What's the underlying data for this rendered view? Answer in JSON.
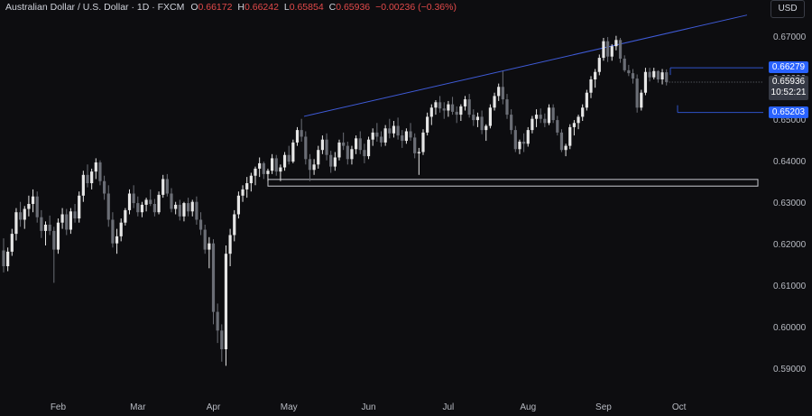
{
  "header": {
    "symbol_title": "Australian Dollar / U.S. Dollar · 1D · FXCM",
    "o_label": "O",
    "o_value": "0.66172",
    "h_label": "H",
    "h_value": "0.66242",
    "l_label": "L",
    "l_value": "0.65854",
    "c_label": "C",
    "c_value": "0.65936",
    "change": "−0.00236 (−0.36%)"
  },
  "currency_button": "USD",
  "price_badges": {
    "upper_level": "0.66279",
    "last_price": "0.65936",
    "countdown": "10:52:21",
    "lower_level": "0.65203"
  },
  "colors": {
    "background": "#0d0d10",
    "candle_up": "#e6e6e6",
    "candle_down": "#6b6e76",
    "trendline": "#3f5bd8",
    "level_box": "#2f52c8",
    "badge_blue": "#2962ff"
  },
  "chart_data": {
    "type": "candlestick",
    "symbol": "AUDUSD",
    "timeframe": "1D",
    "y_ticks": [
      "0.67000",
      "0.66000",
      "0.65000",
      "0.64000",
      "0.63000",
      "0.62000",
      "0.61000",
      "0.60000",
      "0.59000"
    ],
    "x_ticks": [
      "Feb",
      "Mar",
      "Apr",
      "May",
      "Jun",
      "Jul",
      "Aug",
      "Sep",
      "Oct"
    ],
    "ylim": [
      0.5865,
      0.6745
    ],
    "annotations": {
      "rising_trendline": {
        "from": {
          "date": "May 2",
          "price": 0.6511
        },
        "to": {
          "date": "Oct 24",
          "price": 0.6755
        }
      },
      "support_zone": {
        "price_low": 0.6343,
        "price_high": 0.6359
      },
      "range_box": {
        "upper": 0.66279,
        "lower": 0.65203
      }
    },
    "series": [
      {
        "values": [
          [
            0.6188,
            0.6217,
            0.6135,
            0.615
          ],
          [
            0.615,
            0.6195,
            0.6138,
            0.6185
          ],
          [
            0.6185,
            0.624,
            0.6175,
            0.6228
          ],
          [
            0.6228,
            0.629,
            0.6212,
            0.628
          ],
          [
            0.628,
            0.6305,
            0.6245,
            0.6262
          ],
          [
            0.6262,
            0.6295,
            0.624,
            0.6288
          ],
          [
            0.6288,
            0.632,
            0.627,
            0.63
          ],
          [
            0.63,
            0.6335,
            0.628,
            0.6318
          ],
          [
            0.6318,
            0.633,
            0.6255,
            0.6268
          ],
          [
            0.6268,
            0.6285,
            0.6218,
            0.6235
          ],
          [
            0.6235,
            0.6258,
            0.62,
            0.625
          ],
          [
            0.625,
            0.6272,
            0.6225,
            0.6235
          ],
          [
            0.6235,
            0.6245,
            0.611,
            0.619
          ],
          [
            0.619,
            0.6265,
            0.618,
            0.6255
          ],
          [
            0.6255,
            0.629,
            0.624,
            0.6275
          ],
          [
            0.6275,
            0.6288,
            0.6225,
            0.6238
          ],
          [
            0.6238,
            0.629,
            0.6228,
            0.6282
          ],
          [
            0.6282,
            0.63,
            0.6255,
            0.6265
          ],
          [
            0.6265,
            0.633,
            0.6255,
            0.632
          ],
          [
            0.632,
            0.638,
            0.6305,
            0.637
          ],
          [
            0.637,
            0.6395,
            0.634,
            0.635
          ],
          [
            0.635,
            0.6385,
            0.6335,
            0.6378
          ],
          [
            0.6378,
            0.641,
            0.636,
            0.64
          ],
          [
            0.64,
            0.6405,
            0.6345,
            0.6355
          ],
          [
            0.6355,
            0.6368,
            0.631,
            0.6325
          ],
          [
            0.6325,
            0.6345,
            0.6245,
            0.6262
          ],
          [
            0.6262,
            0.628,
            0.6195,
            0.6205
          ],
          [
            0.6205,
            0.624,
            0.618,
            0.6222
          ],
          [
            0.6222,
            0.6265,
            0.621,
            0.6255
          ],
          [
            0.6255,
            0.629,
            0.6248,
            0.6285
          ],
          [
            0.6285,
            0.6335,
            0.6275,
            0.6325
          ],
          [
            0.6325,
            0.6345,
            0.629,
            0.6302
          ],
          [
            0.6302,
            0.6318,
            0.627,
            0.628
          ],
          [
            0.628,
            0.6305,
            0.6268,
            0.6298
          ],
          [
            0.6298,
            0.6315,
            0.6282,
            0.631
          ],
          [
            0.631,
            0.6335,
            0.6295,
            0.63
          ],
          [
            0.63,
            0.6312,
            0.627,
            0.628
          ],
          [
            0.628,
            0.633,
            0.6275,
            0.6322
          ],
          [
            0.6322,
            0.637,
            0.6315,
            0.636
          ],
          [
            0.636,
            0.6372,
            0.6318,
            0.6325
          ],
          [
            0.6325,
            0.6338,
            0.628,
            0.6288
          ],
          [
            0.6288,
            0.6305,
            0.6275,
            0.6298
          ],
          [
            0.6298,
            0.631,
            0.626,
            0.627
          ],
          [
            0.627,
            0.6305,
            0.6258,
            0.6302
          ],
          [
            0.6302,
            0.6315,
            0.627,
            0.6282
          ],
          [
            0.6282,
            0.631,
            0.627,
            0.6305
          ],
          [
            0.6305,
            0.6318,
            0.625,
            0.6262
          ],
          [
            0.6262,
            0.628,
            0.6225,
            0.6238
          ],
          [
            0.6238,
            0.625,
            0.618,
            0.619
          ],
          [
            0.619,
            0.622,
            0.6145,
            0.6205
          ],
          [
            0.6205,
            0.6215,
            0.601,
            0.604
          ],
          [
            0.604,
            0.606,
            0.5965,
            0.5995
          ],
          [
            0.5995,
            0.601,
            0.592,
            0.595
          ],
          [
            0.595,
            0.62,
            0.591,
            0.618
          ],
          [
            0.618,
            0.624,
            0.615,
            0.6225
          ],
          [
            0.6225,
            0.6285,
            0.621,
            0.6275
          ],
          [
            0.6275,
            0.633,
            0.6265,
            0.632
          ],
          [
            0.632,
            0.6345,
            0.6305,
            0.6335
          ],
          [
            0.6335,
            0.6365,
            0.6315,
            0.635
          ],
          [
            0.635,
            0.6375,
            0.633,
            0.6368
          ],
          [
            0.6368,
            0.639,
            0.6345,
            0.6385
          ],
          [
            0.6385,
            0.6412,
            0.6365,
            0.6398
          ],
          [
            0.6398,
            0.6402,
            0.636,
            0.6372
          ],
          [
            0.6372,
            0.6385,
            0.6355,
            0.638
          ],
          [
            0.638,
            0.642,
            0.6372,
            0.641
          ],
          [
            0.641,
            0.6418,
            0.6368,
            0.6378
          ],
          [
            0.6378,
            0.6395,
            0.6355,
            0.6388
          ],
          [
            0.6388,
            0.6425,
            0.638,
            0.6418
          ],
          [
            0.6418,
            0.644,
            0.6395,
            0.6402
          ],
          [
            0.6402,
            0.6455,
            0.6398,
            0.6448
          ],
          [
            0.6448,
            0.6485,
            0.644,
            0.6478
          ],
          [
            0.6478,
            0.6505,
            0.645,
            0.6462
          ],
          [
            0.6462,
            0.6475,
            0.6395,
            0.6408
          ],
          [
            0.6408,
            0.642,
            0.6355,
            0.6382
          ],
          [
            0.6382,
            0.6408,
            0.637,
            0.6395
          ],
          [
            0.6395,
            0.644,
            0.6385,
            0.643
          ],
          [
            0.643,
            0.6465,
            0.642,
            0.6455
          ],
          [
            0.6455,
            0.647,
            0.6405,
            0.6418
          ],
          [
            0.6418,
            0.6428,
            0.6375,
            0.639
          ],
          [
            0.639,
            0.6425,
            0.638,
            0.6412
          ],
          [
            0.6412,
            0.6455,
            0.6405,
            0.6448
          ],
          [
            0.6448,
            0.6472,
            0.643,
            0.644
          ],
          [
            0.644,
            0.645,
            0.6395,
            0.6408
          ],
          [
            0.6408,
            0.644,
            0.6395,
            0.6432
          ],
          [
            0.6432,
            0.6465,
            0.642,
            0.6458
          ],
          [
            0.6458,
            0.6475,
            0.642,
            0.643
          ],
          [
            0.643,
            0.6445,
            0.6398,
            0.6415
          ],
          [
            0.6415,
            0.6462,
            0.6408,
            0.6455
          ],
          [
            0.6455,
            0.6482,
            0.644,
            0.6472
          ],
          [
            0.6472,
            0.6495,
            0.645,
            0.6462
          ],
          [
            0.6462,
            0.6475,
            0.6438,
            0.6448
          ],
          [
            0.6448,
            0.649,
            0.644,
            0.6482
          ],
          [
            0.6482,
            0.6505,
            0.6458,
            0.647
          ],
          [
            0.647,
            0.65,
            0.646,
            0.6488
          ],
          [
            0.6488,
            0.6508,
            0.6455,
            0.6465
          ],
          [
            0.6465,
            0.6478,
            0.6435,
            0.6452
          ],
          [
            0.6452,
            0.6482,
            0.6445,
            0.6475
          ],
          [
            0.6475,
            0.6495,
            0.6452,
            0.646
          ],
          [
            0.646,
            0.647,
            0.641,
            0.6422
          ],
          [
            0.6422,
            0.6435,
            0.637,
            0.6425
          ],
          [
            0.6425,
            0.648,
            0.6418,
            0.6472
          ],
          [
            0.6472,
            0.652,
            0.6465,
            0.651
          ],
          [
            0.651,
            0.654,
            0.649,
            0.6532
          ],
          [
            0.6532,
            0.655,
            0.6515,
            0.6545
          ],
          [
            0.6545,
            0.656,
            0.652,
            0.653
          ],
          [
            0.653,
            0.6545,
            0.6505,
            0.6525
          ],
          [
            0.6525,
            0.6548,
            0.651,
            0.654
          ],
          [
            0.654,
            0.6558,
            0.6515,
            0.6522
          ],
          [
            0.6522,
            0.6535,
            0.6495,
            0.6515
          ],
          [
            0.6515,
            0.654,
            0.65,
            0.6535
          ],
          [
            0.6535,
            0.656,
            0.6525,
            0.6552
          ],
          [
            0.6552,
            0.6565,
            0.6508,
            0.6515
          ],
          [
            0.6515,
            0.6528,
            0.6488,
            0.6502
          ],
          [
            0.6502,
            0.652,
            0.6485,
            0.651
          ],
          [
            0.651,
            0.6525,
            0.6468,
            0.6478
          ],
          [
            0.6478,
            0.6492,
            0.6452,
            0.6488
          ],
          [
            0.6488,
            0.654,
            0.6482,
            0.6532
          ],
          [
            0.6532,
            0.6568,
            0.6525,
            0.656
          ],
          [
            0.656,
            0.659,
            0.6548,
            0.6582
          ],
          [
            0.6582,
            0.662,
            0.654,
            0.6552
          ],
          [
            0.6552,
            0.6565,
            0.6505,
            0.6515
          ],
          [
            0.6515,
            0.6528,
            0.6468,
            0.6478
          ],
          [
            0.6478,
            0.6488,
            0.6425,
            0.6432
          ],
          [
            0.6432,
            0.6455,
            0.642,
            0.645
          ],
          [
            0.645,
            0.647,
            0.6425,
            0.6445
          ],
          [
            0.6445,
            0.6485,
            0.6438,
            0.6478
          ],
          [
            0.6478,
            0.6512,
            0.647,
            0.6505
          ],
          [
            0.6505,
            0.6528,
            0.6485,
            0.6515
          ],
          [
            0.6515,
            0.653,
            0.6495,
            0.6505
          ],
          [
            0.6505,
            0.6518,
            0.6485,
            0.6495
          ],
          [
            0.6495,
            0.654,
            0.649,
            0.6532
          ],
          [
            0.6532,
            0.654,
            0.6495,
            0.6502
          ],
          [
            0.6502,
            0.6512,
            0.6465,
            0.6472
          ],
          [
            0.6472,
            0.648,
            0.6425,
            0.643
          ],
          [
            0.643,
            0.6445,
            0.6415,
            0.644
          ],
          [
            0.644,
            0.6492,
            0.6432,
            0.6485
          ],
          [
            0.6485,
            0.6502,
            0.6465,
            0.6495
          ],
          [
            0.6495,
            0.6515,
            0.648,
            0.651
          ],
          [
            0.651,
            0.654,
            0.65,
            0.6532
          ],
          [
            0.6532,
            0.6575,
            0.6525,
            0.6568
          ],
          [
            0.6568,
            0.6608,
            0.6555,
            0.66
          ],
          [
            0.66,
            0.6625,
            0.658,
            0.6618
          ],
          [
            0.6618,
            0.666,
            0.661,
            0.6652
          ],
          [
            0.6652,
            0.67,
            0.6645,
            0.6692
          ],
          [
            0.6692,
            0.6702,
            0.6642,
            0.6655
          ],
          [
            0.6655,
            0.6685,
            0.6645,
            0.668
          ],
          [
            0.668,
            0.6705,
            0.667,
            0.6695
          ],
          [
            0.6695,
            0.67,
            0.664,
            0.665
          ],
          [
            0.665,
            0.6658,
            0.6618,
            0.6622
          ],
          [
            0.6622,
            0.6635,
            0.6608,
            0.6615
          ],
          [
            0.6615,
            0.6625,
            0.659,
            0.6602
          ],
          [
            0.6602,
            0.6612,
            0.652,
            0.6532
          ],
          [
            0.6532,
            0.6575,
            0.6525,
            0.6568
          ],
          [
            0.6568,
            0.6628,
            0.6562,
            0.6618
          ],
          [
            0.6618,
            0.6628,
            0.6595,
            0.6605
          ],
          [
            0.6605,
            0.6628,
            0.66,
            0.662
          ],
          [
            0.662,
            0.6622,
            0.6592,
            0.66
          ],
          [
            0.66,
            0.6625,
            0.6588,
            0.6617
          ],
          [
            0.66172,
            0.66242,
            0.65854,
            0.65936
          ]
        ]
      }
    ]
  }
}
